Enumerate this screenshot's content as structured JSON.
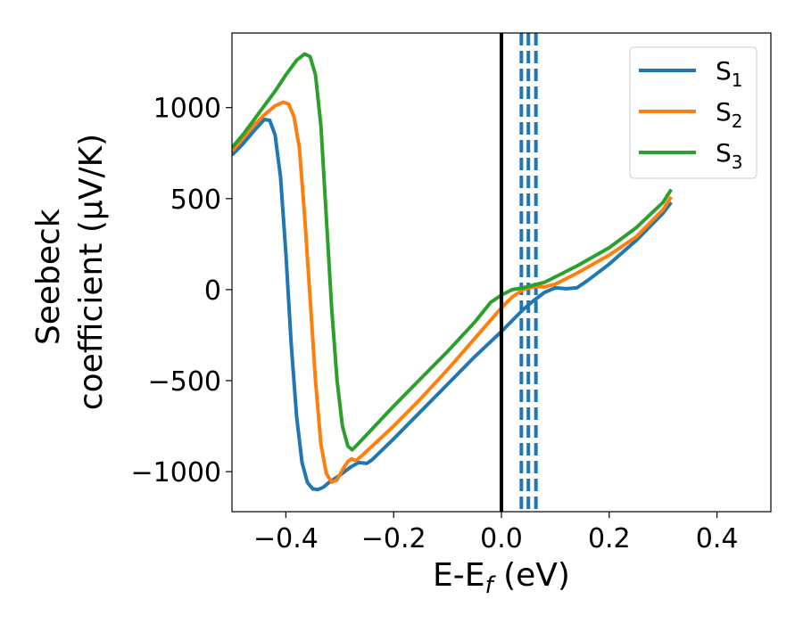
{
  "chart_data": {
    "type": "line",
    "xlabel": "E-E",
    "xlabel_sub": "f",
    "xlabel_unit": " (eV)",
    "ylabel_line1": "Seebeck",
    "ylabel_line2": "coefficient  (μV/K)",
    "xlim": [
      -0.5,
      0.5
    ],
    "ylim": [
      -1220,
      1410
    ],
    "xticks": [
      -0.4,
      -0.2,
      0.0,
      0.2,
      0.4
    ],
    "xtick_labels": [
      "−0.4",
      "−0.2",
      "0.0",
      "0.2",
      "0.4"
    ],
    "yticks": [
      -1000,
      -500,
      0,
      500,
      1000
    ],
    "ytick_labels": [
      "−1000",
      "−500",
      "0",
      "500",
      "1000"
    ],
    "legend_position": "top-right",
    "grid": false,
    "vertical_lines": [
      {
        "x": 0.0,
        "style": "solid",
        "color": "#000000"
      },
      {
        "x": 0.037,
        "style": "dashed",
        "color": "#1f77b4"
      },
      {
        "x": 0.05,
        "style": "dashed",
        "color": "#1f77b4"
      },
      {
        "x": 0.064,
        "style": "dashed",
        "color": "#1f77b4"
      }
    ],
    "series": [
      {
        "name": "S",
        "sub": "1",
        "color": "#1f77b4",
        "points": [
          [
            -0.5,
            740
          ],
          [
            -0.48,
            800
          ],
          [
            -0.46,
            870
          ],
          [
            -0.44,
            935
          ],
          [
            -0.43,
            930
          ],
          [
            -0.42,
            850
          ],
          [
            -0.41,
            620
          ],
          [
            -0.4,
            200
          ],
          [
            -0.39,
            -300
          ],
          [
            -0.38,
            -700
          ],
          [
            -0.37,
            -950
          ],
          [
            -0.36,
            -1060
          ],
          [
            -0.35,
            -1095
          ],
          [
            -0.34,
            -1098
          ],
          [
            -0.33,
            -1085
          ],
          [
            -0.32,
            -1060
          ],
          [
            -0.3,
            -1020
          ],
          [
            -0.28,
            -975
          ],
          [
            -0.265,
            -950
          ],
          [
            -0.25,
            -955
          ],
          [
            -0.24,
            -935
          ],
          [
            -0.2,
            -820
          ],
          [
            -0.15,
            -670
          ],
          [
            -0.1,
            -520
          ],
          [
            -0.05,
            -370
          ],
          [
            0.0,
            -230
          ],
          [
            0.02,
            -170
          ],
          [
            0.04,
            -110
          ],
          [
            0.06,
            -60
          ],
          [
            0.08,
            -15
          ],
          [
            0.1,
            10
          ],
          [
            0.12,
            5
          ],
          [
            0.14,
            10
          ],
          [
            0.16,
            50
          ],
          [
            0.2,
            140
          ],
          [
            0.25,
            270
          ],
          [
            0.3,
            420
          ],
          [
            0.315,
            480
          ]
        ]
      },
      {
        "name": "S",
        "sub": "2",
        "color": "#ff7f0e",
        "points": [
          [
            -0.5,
            760
          ],
          [
            -0.48,
            830
          ],
          [
            -0.46,
            900
          ],
          [
            -0.44,
            960
          ],
          [
            -0.42,
            1010
          ],
          [
            -0.405,
            1030
          ],
          [
            -0.395,
            1020
          ],
          [
            -0.385,
            950
          ],
          [
            -0.375,
            780
          ],
          [
            -0.365,
            400
          ],
          [
            -0.355,
            -50
          ],
          [
            -0.345,
            -500
          ],
          [
            -0.335,
            -850
          ],
          [
            -0.325,
            -1010
          ],
          [
            -0.315,
            -1058
          ],
          [
            -0.305,
            -1045
          ],
          [
            -0.295,
            -990
          ],
          [
            -0.285,
            -945
          ],
          [
            -0.278,
            -930
          ],
          [
            -0.27,
            -940
          ],
          [
            -0.26,
            -915
          ],
          [
            -0.2,
            -750
          ],
          [
            -0.15,
            -600
          ],
          [
            -0.1,
            -440
          ],
          [
            -0.05,
            -270
          ],
          [
            0.0,
            -100
          ],
          [
            0.02,
            -40
          ],
          [
            0.04,
            0
          ],
          [
            0.06,
            15
          ],
          [
            0.08,
            15
          ],
          [
            0.1,
            30
          ],
          [
            0.14,
            90
          ],
          [
            0.2,
            190
          ],
          [
            0.25,
            290
          ],
          [
            0.3,
            440
          ],
          [
            0.315,
            510
          ]
        ]
      },
      {
        "name": "S",
        "sub": "3",
        "color": "#2ca02c",
        "points": [
          [
            -0.5,
            780
          ],
          [
            -0.48,
            850
          ],
          [
            -0.46,
            930
          ],
          [
            -0.44,
            1010
          ],
          [
            -0.42,
            1090
          ],
          [
            -0.4,
            1180
          ],
          [
            -0.38,
            1260
          ],
          [
            -0.365,
            1295
          ],
          [
            -0.355,
            1280
          ],
          [
            -0.345,
            1180
          ],
          [
            -0.335,
            900
          ],
          [
            -0.325,
            400
          ],
          [
            -0.315,
            -100
          ],
          [
            -0.305,
            -500
          ],
          [
            -0.295,
            -750
          ],
          [
            -0.285,
            -860
          ],
          [
            -0.277,
            -880
          ],
          [
            -0.27,
            -860
          ],
          [
            -0.2,
            -640
          ],
          [
            -0.15,
            -490
          ],
          [
            -0.1,
            -340
          ],
          [
            -0.05,
            -180
          ],
          [
            -0.02,
            -70
          ],
          [
            0.0,
            -30
          ],
          [
            0.02,
            0
          ],
          [
            0.04,
            10
          ],
          [
            0.06,
            25
          ],
          [
            0.08,
            40
          ],
          [
            0.1,
            70
          ],
          [
            0.14,
            130
          ],
          [
            0.2,
            230
          ],
          [
            0.25,
            340
          ],
          [
            0.3,
            480
          ],
          [
            0.315,
            550
          ]
        ]
      }
    ]
  }
}
